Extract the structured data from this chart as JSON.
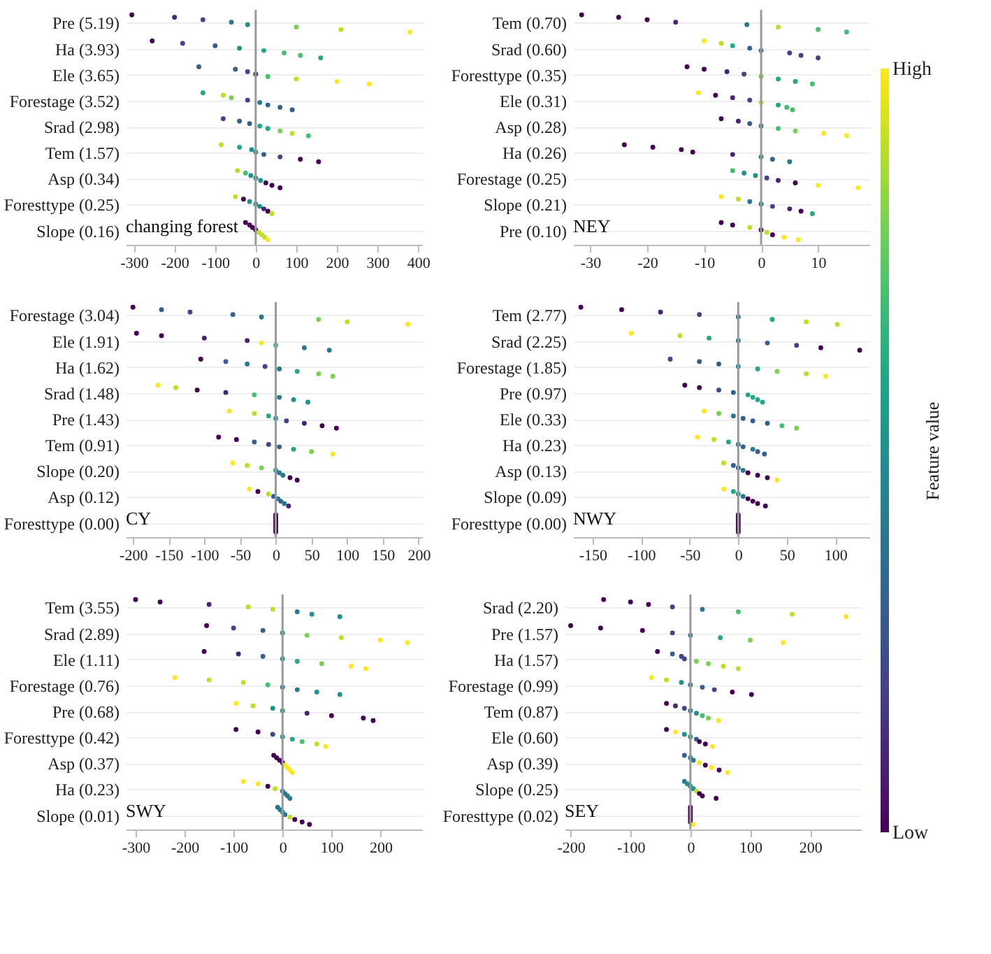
{
  "chart_data": [
    {
      "type": "scatter",
      "title": "changing forest",
      "orientation": "horizontal",
      "categories": [
        "Pre (5.19)",
        "Ha (3.93)",
        "Ele (3.65)",
        "Forestage (3.52)",
        "Srad (2.98)",
        "Tem (1.57)",
        "Asp (0.34)",
        "Foresttype (0.25)",
        "Slope (0.16)"
      ],
      "xlim": [
        -320,
        410
      ],
      "xticks": [
        -300,
        -200,
        -100,
        0,
        100,
        200,
        300,
        400
      ],
      "grid": "y",
      "marker": "circle",
      "clabel": "Feature value",
      "clim": [
        0,
        1
      ],
      "cticks": [
        {
          "value": 0,
          "label": "Low"
        },
        {
          "value": 1,
          "label": "High"
        }
      ],
      "ref_lines": [
        {
          "axis": "x",
          "value": 0,
          "color": "#999999"
        }
      ],
      "series": [
        {
          "values": [
            -305,
            -255,
            -140,
            -130,
            -80,
            -85,
            -45,
            -50,
            -25
          ],
          "colors": [
            "#440154",
            "#440154",
            "#355f8d",
            "#22a884",
            "#414487",
            "#bddf26",
            "#bddf26",
            "#bddf26",
            "#440154"
          ]
        },
        {
          "values": [
            -200,
            -180,
            -50,
            -80,
            -40,
            -40,
            -25,
            -30,
            -15
          ],
          "colors": [
            "#482475",
            "#414487",
            "#355f8d",
            "#bddf26",
            "#355f8d",
            "#22a884",
            "#44bf70",
            "#440154",
            "#440154"
          ]
        },
        {
          "values": [
            -130,
            -100,
            -20,
            -60,
            -15,
            -10,
            -12,
            -15,
            -8
          ],
          "colors": [
            "#414487",
            "#355f8d",
            "#414487",
            "#7ad151",
            "#355f8d",
            "#21918c",
            "#21918c",
            "#21918c",
            "#440154"
          ]
        },
        {
          "values": [
            -60,
            -40,
            0,
            -20,
            10,
            0,
            0,
            0,
            0
          ],
          "colors": [
            "#2a788e",
            "#21918c",
            "#482475",
            "#414487",
            "#22a884",
            "#21918c",
            "#21918c",
            "#21918c",
            "#440154"
          ]
        },
        {
          "values": [
            -20,
            20,
            30,
            10,
            30,
            20,
            12,
            10,
            8
          ],
          "colors": [
            "#21918c",
            "#22a884",
            "#44bf70",
            "#2a788e",
            "#22a884",
            "#355f8d",
            "#21918c",
            "#21918c",
            "#bddf26"
          ]
        },
        {
          "values": [
            100,
            70,
            100,
            30,
            60,
            60,
            25,
            20,
            15
          ],
          "colors": [
            "#7ad151",
            "#44bf70",
            "#bddf26",
            "#355f8d",
            "#7ad151",
            "#414487",
            "#440154",
            "#482475",
            "#bddf26"
          ]
        },
        {
          "values": [
            210,
            110,
            200,
            60,
            90,
            110,
            40,
            30,
            22
          ],
          "colors": [
            "#bddf26",
            "#44bf70",
            "#fde725",
            "#355f8d",
            "#bddf26",
            "#440154",
            "#440154",
            "#440154",
            "#bddf26"
          ]
        },
        {
          "values": [
            380,
            160,
            280,
            90,
            130,
            155,
            60,
            40,
            30
          ],
          "colors": [
            "#fde725",
            "#22a884",
            "#fde725",
            "#355f8d",
            "#44bf70",
            "#440154",
            "#440154",
            "#bddf26",
            "#fde725"
          ]
        }
      ]
    },
    {
      "type": "scatter",
      "title": "NEY",
      "orientation": "horizontal",
      "categories": [
        "Tem (0.70)",
        "Srad (0.60)",
        "Foresttype (0.35)",
        "Ele (0.31)",
        "Asp (0.28)",
        "Ha (0.26)",
        "Forestage (0.25)",
        "Slope (0.21)",
        "Pre (0.10)"
      ],
      "xlim": [
        -33,
        19
      ],
      "xticks": [
        -30,
        -20,
        -10,
        0,
        10
      ],
      "grid": "y",
      "marker": "circle",
      "ref_lines": [
        {
          "axis": "x",
          "value": 0,
          "color": "#999999"
        }
      ],
      "series": [
        {
          "values": [
            -31.5,
            -10,
            -13,
            -11,
            -7,
            -24,
            -5,
            -7,
            -7
          ],
          "colors": [
            "#440154",
            "#fde725",
            "#440154",
            "#fde725",
            "#440154",
            "#440154",
            "#44bf70",
            "#fde725",
            "#440154"
          ]
        },
        {
          "values": [
            -25,
            -7,
            -10,
            -8,
            -4,
            -19,
            -3,
            -4,
            -5
          ],
          "colors": [
            "#440154",
            "#bddf26",
            "#440154",
            "#440154",
            "#482475",
            "#440154",
            "#21918c",
            "#bddf26",
            "#440154"
          ]
        },
        {
          "values": [
            -20,
            -5,
            -6,
            -5,
            -2,
            -14,
            -1,
            -2,
            -2
          ],
          "colors": [
            "#440154",
            "#22a884",
            "#482475",
            "#482475",
            "#355f8d",
            "#440154",
            "#21918c",
            "#2a788e",
            "#bddf26"
          ]
        },
        {
          "values": [
            -15,
            -2,
            -3,
            -2,
            0,
            -12,
            1,
            0,
            0
          ],
          "colors": [
            "#482475",
            "#355f8d",
            "#414487",
            "#414487",
            "#2a788e",
            "#440154",
            "#414487",
            "#2a788e",
            "#440154"
          ]
        },
        {
          "values": [
            -2.5,
            0,
            0,
            0,
            3,
            -5,
            3,
            2,
            1
          ],
          "colors": [
            "#2a788e",
            "#2a788e",
            "#7ad151",
            "#bddf26",
            "#44bf70",
            "#482475",
            "#482475",
            "#414487",
            "#bddf26"
          ]
        },
        {
          "values": [
            3,
            5,
            3,
            3,
            6,
            0,
            6,
            5,
            2
          ],
          "colors": [
            "#bddf26",
            "#414487",
            "#22a884",
            "#22a884",
            "#7ad151",
            "#2a788e",
            "#440154",
            "#482475",
            "#440154"
          ]
        },
        {
          "values": [
            10,
            7,
            6,
            4.5,
            11,
            2,
            10,
            7,
            4
          ],
          "colors": [
            "#44bf70",
            "#414487",
            "#22a884",
            "#44bf70",
            "#fde725",
            "#355f8d",
            "#fde725",
            "#440154",
            "#fde725"
          ]
        },
        {
          "values": [
            15,
            10,
            9,
            5.5,
            15,
            5,
            17,
            9,
            6.5
          ],
          "colors": [
            "#44bf70",
            "#414487",
            "#44bf70",
            "#44bf70",
            "#fde725",
            "#2a788e",
            "#fde725",
            "#22a884",
            "#fde725"
          ]
        }
      ]
    },
    {
      "type": "scatter",
      "title": "CY",
      "orientation": "horizontal",
      "categories": [
        "Forestage (3.04)",
        "Ele (1.91)",
        "Ha (1.62)",
        "Srad (1.48)",
        "Pre (1.43)",
        "Tem (0.91)",
        "Slope (0.20)",
        "Asp (0.12)",
        "Foresttype (0.00)"
      ],
      "xlim": [
        -210,
        205
      ],
      "xticks": [
        -200,
        -150,
        -100,
        -50,
        0,
        50,
        100,
        150,
        200
      ],
      "grid": "y",
      "marker": "circle",
      "ref_lines": [
        {
          "axis": "x",
          "value": 0,
          "color": "#999999"
        }
      ],
      "series": [
        {
          "values": [
            -200,
            -195,
            -105,
            -165,
            -65,
            -80,
            -60,
            -37,
            0
          ],
          "colors": [
            "#440154",
            "#440154",
            "#440154",
            "#fde725",
            "#fde725",
            "#440154",
            "#fde725",
            "#fde725",
            "#440154"
          ]
        },
        {
          "values": [
            -160,
            -160,
            -70,
            -140,
            -30,
            -55,
            -40,
            -25,
            0
          ],
          "colors": [
            "#355f8d",
            "#440154",
            "#355f8d",
            "#bddf26",
            "#bddf26",
            "#440154",
            "#bddf26",
            "#440154",
            "#440154"
          ]
        },
        {
          "values": [
            -120,
            -100,
            -40,
            -110,
            -10,
            -30,
            -20,
            -10,
            0
          ],
          "colors": [
            "#414487",
            "#482475",
            "#2a788e",
            "#440154",
            "#22a884",
            "#355f8d",
            "#7ad151",
            "#bddf26",
            "#440154"
          ]
        },
        {
          "values": [
            -60,
            -40,
            -15,
            -70,
            0,
            -10,
            0,
            -3,
            0
          ],
          "colors": [
            "#355f8d",
            "#482475",
            "#414487",
            "#482475",
            "#21918c",
            "#414487",
            "#21918c",
            "#355f8d",
            "#440154"
          ]
        },
        {
          "values": [
            -20,
            -20,
            5,
            -30,
            15,
            5,
            5,
            3,
            0
          ],
          "colors": [
            "#2a788e",
            "#fde725",
            "#2a788e",
            "#44bf70",
            "#414487",
            "#355f8d",
            "#2a788e",
            "#2a788e",
            "#440154"
          ]
        },
        {
          "values": [
            60,
            0,
            30,
            5,
            40,
            25,
            10,
            7,
            0
          ],
          "colors": [
            "#7ad151",
            "#44bf70",
            "#22a884",
            "#2a788e",
            "#482475",
            "#22a884",
            "#2a788e",
            "#355f8d",
            "#440154"
          ]
        },
        {
          "values": [
            100,
            40,
            60,
            25,
            65,
            50,
            20,
            12,
            0
          ],
          "colors": [
            "#bddf26",
            "#2a788e",
            "#7ad151",
            "#21918c",
            "#440154",
            "#7ad151",
            "#440154",
            "#2a788e",
            "#440154"
          ]
        },
        {
          "values": [
            185,
            75,
            80,
            45,
            85,
            80,
            30,
            18,
            0
          ],
          "colors": [
            "#fde725",
            "#2a788e",
            "#7ad151",
            "#21918c",
            "#440154",
            "#fde725",
            "#440154",
            "#482475",
            "#440154"
          ]
        }
      ]
    },
    {
      "type": "scatter",
      "title": "NWY",
      "orientation": "horizontal",
      "categories": [
        "Tem (2.77)",
        "Srad (2.25)",
        "Forestage (1.85)",
        "Pre (0.97)",
        "Ele (0.33)",
        "Ha (0.23)",
        "Asp (0.13)",
        "Slope (0.09)",
        "Foresttype (0.00)"
      ],
      "xlim": [
        -170,
        135
      ],
      "xticks": [
        -150,
        -100,
        -50,
        0,
        50,
        100
      ],
      "grid": "y",
      "marker": "circle",
      "ref_lines": [
        {
          "axis": "x",
          "value": 0,
          "color": "#999999"
        }
      ],
      "series": [
        {
          "values": [
            -162,
            -110,
            -70,
            -55,
            -35,
            -42,
            -15,
            -15,
            0
          ],
          "colors": [
            "#440154",
            "#fde725",
            "#414487",
            "#440154",
            "#fde725",
            "#fde725",
            "#bddf26",
            "#fde725",
            "#440154"
          ]
        },
        {
          "values": [
            -120,
            -60,
            -40,
            -40,
            -20,
            -25,
            -5,
            -5,
            0
          ],
          "colors": [
            "#440154",
            "#bddf26",
            "#355f8d",
            "#440154",
            "#7ad151",
            "#bddf26",
            "#355f8d",
            "#22a884",
            "#440154"
          ]
        },
        {
          "values": [
            -80,
            -30,
            -20,
            -20,
            -5,
            -10,
            0,
            0,
            0
          ],
          "colors": [
            "#482475",
            "#22a884",
            "#355f8d",
            "#414487",
            "#2a788e",
            "#22a884",
            "#355f8d",
            "#21918c",
            "#440154"
          ]
        },
        {
          "values": [
            -40,
            0,
            0,
            -5,
            5,
            0,
            5,
            5,
            0
          ],
          "colors": [
            "#414487",
            "#2a788e",
            "#21918c",
            "#355f8d",
            "#355f8d",
            "#2a788e",
            "#2a788e",
            "#2a788e",
            "#440154"
          ]
        },
        {
          "values": [
            0,
            30,
            20,
            10,
            15,
            5,
            10,
            10,
            0
          ],
          "colors": [
            "#2a788e",
            "#355f8d",
            "#22a884",
            "#22a884",
            "#355f8d",
            "#355f8d",
            "#440154",
            "#440154",
            "#440154"
          ]
        },
        {
          "values": [
            35,
            60,
            40,
            15,
            30,
            15,
            20,
            15,
            0
          ],
          "colors": [
            "#22a884",
            "#414487",
            "#7ad151",
            "#22a884",
            "#355f8d",
            "#2a788e",
            "#440154",
            "#440154",
            "#440154"
          ]
        },
        {
          "values": [
            70,
            85,
            70,
            20,
            45,
            20,
            30,
            20,
            0
          ],
          "colors": [
            "#bddf26",
            "#440154",
            "#bddf26",
            "#22a884",
            "#44bf70",
            "#355f8d",
            "#440154",
            "#440154",
            "#440154"
          ]
        },
        {
          "values": [
            102,
            125,
            90,
            25,
            60,
            27,
            40,
            28,
            0
          ],
          "colors": [
            "#bddf26",
            "#440154",
            "#fde725",
            "#22a884",
            "#7ad151",
            "#355f8d",
            "#fde725",
            "#440154",
            "#440154"
          ]
        }
      ]
    },
    {
      "type": "scatter",
      "title": "SWY",
      "orientation": "horizontal",
      "categories": [
        "Tem (3.55)",
        "Srad (2.89)",
        "Ele (1.11)",
        "Forestage (0.76)",
        "Pre (0.68)",
        "Foresttype (0.42)",
        "Asp (0.37)",
        "Ha (0.23)",
        "Slope (0.01)"
      ],
      "xlim": [
        -320,
        285
      ],
      "xticks": [
        -300,
        -200,
        -100,
        0,
        100,
        200
      ],
      "grid": "y",
      "marker": "circle",
      "ref_lines": [
        {
          "axis": "x",
          "value": 0,
          "color": "#999999"
        }
      ],
      "series": [
        {
          "values": [
            -300,
            -155,
            -160,
            -220,
            -95,
            -95,
            -18,
            -80,
            -10
          ],
          "colors": [
            "#440154",
            "#440154",
            "#440154",
            "#fde725",
            "#fde725",
            "#440154",
            "#440154",
            "#fde725",
            "#2a788e"
          ]
        },
        {
          "values": [
            -250,
            -100,
            -90,
            -150,
            -60,
            -50,
            -12,
            -50,
            -5
          ],
          "colors": [
            "#440154",
            "#414487",
            "#482475",
            "#bddf26",
            "#bddf26",
            "#440154",
            "#440154",
            "#fde725",
            "#2a788e"
          ]
        },
        {
          "values": [
            -150,
            -40,
            -40,
            -80,
            -20,
            -20,
            -6,
            -30,
            0
          ],
          "colors": [
            "#482475",
            "#355f8d",
            "#355f8d",
            "#bddf26",
            "#21918c",
            "#414487",
            "#440154",
            "#440154",
            "#21918c"
          ]
        },
        {
          "values": [
            -70,
            0,
            0,
            -30,
            0,
            0,
            0,
            -15,
            5
          ],
          "colors": [
            "#bddf26",
            "#21918c",
            "#21918c",
            "#44bf70",
            "#21918c",
            "#21918c",
            "#440154",
            "#bddf26",
            "#2a788e"
          ]
        },
        {
          "values": [
            -20,
            50,
            30,
            0,
            50,
            20,
            5,
            0,
            15
          ],
          "colors": [
            "#bddf26",
            "#7ad151",
            "#22a884",
            "#2a788e",
            "#482475",
            "#22a884",
            "#fde725",
            "#2a788e",
            "#bddf26"
          ]
        },
        {
          "values": [
            30,
            120,
            80,
            30,
            100,
            40,
            10,
            5,
            25
          ],
          "colors": [
            "#2a788e",
            "#bddf26",
            "#7ad151",
            "#2a788e",
            "#440154",
            "#44bf70",
            "#fde725",
            "#2a788e",
            "#440154"
          ]
        },
        {
          "values": [
            60,
            200,
            140,
            70,
            165,
            70,
            15,
            10,
            40
          ],
          "colors": [
            "#21918c",
            "#fde725",
            "#fde725",
            "#21918c",
            "#440154",
            "#bddf26",
            "#fde725",
            "#2a788e",
            "#440154"
          ]
        },
        {
          "values": [
            117,
            255,
            170,
            117,
            185,
            88,
            20,
            15,
            55
          ],
          "colors": [
            "#21918c",
            "#fde725",
            "#fde725",
            "#21918c",
            "#440154",
            "#fde725",
            "#fde725",
            "#2a788e",
            "#440154"
          ]
        }
      ]
    },
    {
      "type": "scatter",
      "title": "SEY",
      "orientation": "horizontal",
      "categories": [
        "Srad (2.20)",
        "Pre (1.57)",
        "Ha (1.57)",
        "Forestage (0.99)",
        "Tem (0.87)",
        "Ele (0.60)",
        "Asp (0.39)",
        "Slope (0.25)",
        "Foresttype (0.02)"
      ],
      "xlim": [
        -210,
        285
      ],
      "xticks": [
        -200,
        -100,
        0,
        100,
        200
      ],
      "grid": "y",
      "marker": "circle",
      "ref_lines": [
        {
          "axis": "x",
          "value": 0,
          "color": "#999999"
        }
      ],
      "series": [
        {
          "values": [
            -145,
            -200,
            -55,
            -65,
            -40,
            -40,
            -10,
            -10,
            0
          ],
          "colors": [
            "#440154",
            "#440154",
            "#440154",
            "#fde725",
            "#440154",
            "#440154",
            "#355f8d",
            "#2a788e",
            "#440154"
          ]
        },
        {
          "values": [
            -100,
            -150,
            -30,
            -40,
            -25,
            -25,
            0,
            -5,
            0
          ],
          "colors": [
            "#440154",
            "#440154",
            "#355f8d",
            "#bddf26",
            "#482475",
            "#fde725",
            "#2a788e",
            "#21918c",
            "#440154"
          ]
        },
        {
          "values": [
            -70,
            -80,
            -15,
            -15,
            -10,
            -10,
            5,
            0,
            0
          ],
          "colors": [
            "#440154",
            "#440154",
            "#414487",
            "#21918c",
            "#414487",
            "#21918c",
            "#2a788e",
            "#21918c",
            "#440154"
          ]
        },
        {
          "values": [
            -30,
            -30,
            -10,
            0,
            0,
            0,
            15,
            5,
            0
          ],
          "colors": [
            "#414487",
            "#414487",
            "#414487",
            "#2a788e",
            "#2a788e",
            "#21918c",
            "#fde725",
            "#21918c",
            "#440154"
          ]
        },
        {
          "values": [
            20,
            0,
            10,
            20,
            10,
            10,
            25,
            10,
            0
          ],
          "colors": [
            "#2a788e",
            "#2a788e",
            "#7ad151",
            "#355f8d",
            "#21918c",
            "#355f8d",
            "#440154",
            "#bddf26",
            "#440154"
          ]
        },
        {
          "values": [
            80,
            50,
            30,
            40,
            20,
            15,
            35,
            15,
            0
          ],
          "colors": [
            "#44bf70",
            "#22a884",
            "#7ad151",
            "#414487",
            "#44bf70",
            "#440154",
            "#fde725",
            "#440154",
            "#440154"
          ]
        },
        {
          "values": [
            170,
            100,
            55,
            70,
            30,
            25,
            48,
            20,
            0
          ],
          "colors": [
            "#bddf26",
            "#7ad151",
            "#bddf26",
            "#440154",
            "#7ad151",
            "#440154",
            "#440154",
            "#440154",
            "#440154"
          ]
        },
        {
          "values": [
            260,
            155,
            80,
            102,
            47,
            37,
            62,
            43,
            5
          ],
          "colors": [
            "#fde725",
            "#fde725",
            "#bddf26",
            "#440154",
            "#fde725",
            "#fde725",
            "#fde725",
            "#440154",
            "#fde725"
          ]
        }
      ]
    }
  ]
}
